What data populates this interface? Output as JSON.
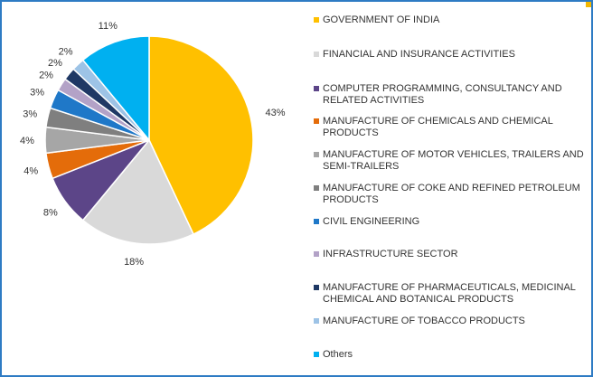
{
  "chart_data": {
    "type": "pie",
    "slices": [
      {
        "label": "GOVERNMENT OF INDIA",
        "value": 43,
        "display": "43%",
        "color": "#FFC000"
      },
      {
        "label": "FINANCIAL AND INSURANCE ACTIVITIES",
        "value": 18,
        "display": "18%",
        "color": "#D9D9D9"
      },
      {
        "label": "COMPUTER PROGRAMMING, CONSULTANCY AND RELATED ACTIVITIES",
        "value": 8,
        "display": "8%",
        "color": "#5C4588"
      },
      {
        "label": "MANUFACTURE OF CHEMICALS AND CHEMICAL PRODUCTS",
        "value": 4,
        "display": "4%",
        "color": "#E46C0A"
      },
      {
        "label": "MANUFACTURE OF MOTOR VEHICLES, TRAILERS AND SEMI-TRAILERS",
        "value": 4,
        "display": "4%",
        "color": "#A6A6A6"
      },
      {
        "label": "MANUFACTURE OF COKE AND REFINED PETROLEUM PRODUCTS",
        "value": 3,
        "display": "3%",
        "color": "#7F7F7F"
      },
      {
        "label": "CIVIL ENGINEERING",
        "value": 3,
        "display": "3%",
        "color": "#1F78C8"
      },
      {
        "label": "INFRASTRUCTURE SECTOR",
        "value": 2,
        "display": "2%",
        "color": "#B3A2C7"
      },
      {
        "label": "MANUFACTURE OF PHARMACEUTICALS, MEDICINAL CHEMICAL AND BOTANICAL PRODUCTS",
        "value": 2,
        "display": "2%",
        "color": "#1F3864"
      },
      {
        "label": "MANUFACTURE OF TOBACCO PRODUCTS",
        "value": 2,
        "display": "2%",
        "color": "#9DC3E6"
      },
      {
        "label": "Others",
        "value": 11,
        "display": "11%",
        "color": "#00B0F0"
      }
    ],
    "legend_position": "right"
  }
}
